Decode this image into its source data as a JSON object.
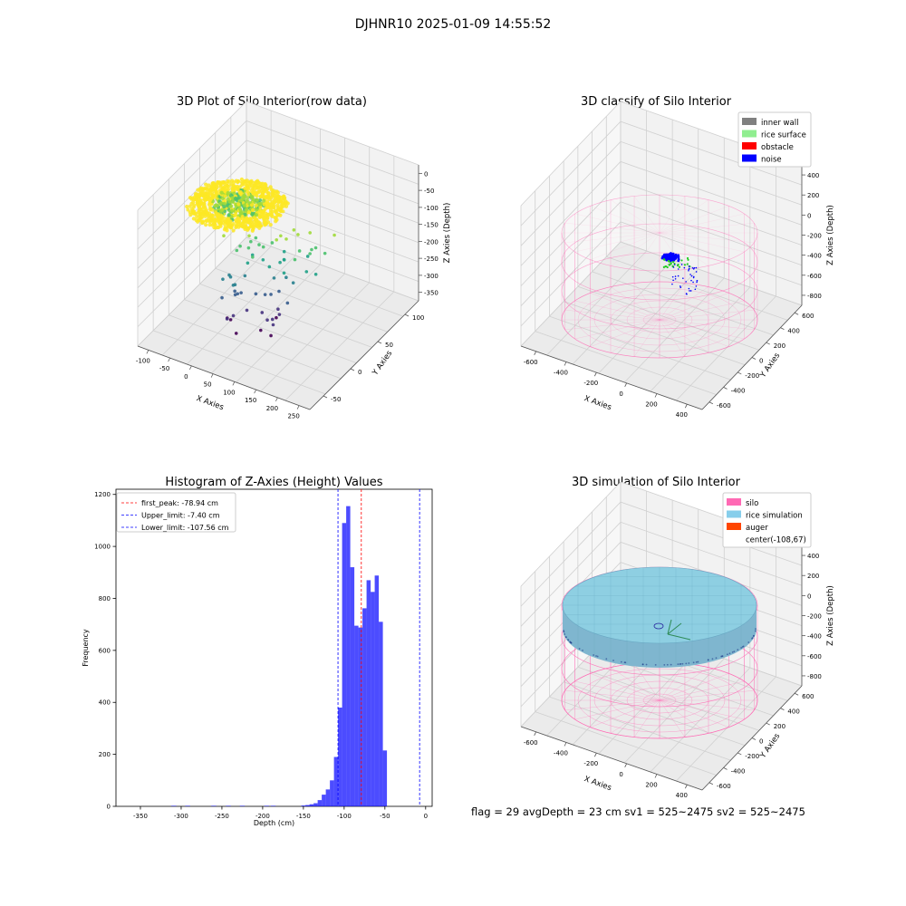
{
  "figure": {
    "suptitle": "DJHNR10 2025-01-09 14:55:52",
    "status_text": "flag = 29  avgDepth = 23 cm     sv1 = 525~2475  sv2 = 525~2475"
  },
  "chart_data": [
    {
      "type": "scatter",
      "title": "3D Plot of Silo Interior(row data)",
      "xlabel": "X Axies",
      "ylabel": "Y Axies",
      "zlabel": "Z Axies (Depth)",
      "x_ticks": [
        -100,
        -50,
        0,
        50,
        100,
        150,
        200,
        250
      ],
      "y_ticks": [
        -50,
        0,
        50,
        100
      ],
      "z_ticks": [
        0,
        -50,
        -100,
        -150,
        -200,
        -250,
        -300,
        -350
      ],
      "xlim": [
        -120,
        270
      ],
      "ylim": [
        -80,
        130
      ],
      "zlim": [
        -380,
        20
      ],
      "colormap": "viridis",
      "grid": true
    },
    {
      "type": "scatter",
      "title": "3D classify of Silo Interior",
      "xlabel": "X Axies",
      "ylabel": "Y Axies",
      "zlabel": "Z Axies (Depth)",
      "x_ticks": [
        -600,
        -400,
        -200,
        0,
        200,
        400
      ],
      "y_ticks": [
        -600,
        -400,
        -200,
        0,
        200,
        400,
        600
      ],
      "z_ticks": [
        400,
        200,
        0,
        -200,
        -400,
        -600,
        -800
      ],
      "legend": [
        {
          "label": "inner wall",
          "color": "#808080"
        },
        {
          "label": "rice surface",
          "color": "#90ee90"
        },
        {
          "label": "obstacle",
          "color": "#ff0000"
        },
        {
          "label": "noise",
          "color": "#0000ff"
        }
      ],
      "legend_position": "top-right",
      "wall_color": "#ff69b4",
      "grid": true
    },
    {
      "type": "bar",
      "title": "Histogram of Z-Axies (Height) Values",
      "xlabel": "Depth (cm)",
      "ylabel": "Frequency",
      "xlim": [
        -380,
        8
      ],
      "ylim": [
        0,
        1220
      ],
      "x_ticks": [
        -350,
        -300,
        -250,
        -200,
        -150,
        -100,
        -50,
        0
      ],
      "y_ticks": [
        0,
        200,
        400,
        600,
        800,
        1000,
        1200
      ],
      "bar_color": "#0000ff",
      "bin_start": -152.5,
      "bin_width": 5,
      "values": [
        3,
        5,
        8,
        12,
        24,
        45,
        65,
        100,
        190,
        380,
        1090,
        1155,
        920,
        695,
        688,
        762,
        870,
        825,
        888,
        710,
        215
      ],
      "sparse_bins": [
        {
          "x": -312,
          "value": 2
        },
        {
          "x": -295,
          "value": 2
        },
        {
          "x": -263,
          "value": 2
        },
        {
          "x": -245,
          "value": 2
        },
        {
          "x": -228,
          "value": 2
        },
        {
          "x": -198,
          "value": 2
        },
        {
          "x": -190,
          "value": 2
        }
      ],
      "vlines": [
        {
          "label": "first_peak: -78.94 cm",
          "x": -78.94,
          "color": "#ff0000"
        },
        {
          "label": "Upper_limit: -7.40 cm",
          "x": -7.4,
          "color": "#0000ff"
        },
        {
          "label": "Lower_limit: -107.56 cm",
          "x": -107.56,
          "color": "#0000ff"
        }
      ],
      "legend_position": "top-left"
    },
    {
      "type": "scatter",
      "title": "3D simulation of Silo Interior",
      "xlabel": "X Axies",
      "ylabel": "Y Axies",
      "zlabel": "Z Axies (Depth)",
      "x_ticks": [
        -600,
        -400,
        -200,
        0,
        200,
        400
      ],
      "y_ticks": [
        -600,
        -400,
        -200,
        0,
        200,
        400,
        600
      ],
      "z_ticks": [
        400,
        200,
        0,
        -200,
        -400,
        -600,
        -800
      ],
      "legend": [
        {
          "label": "silo",
          "color": "#ff69b4"
        },
        {
          "label": "rice simulation",
          "color": "#87ceeb"
        },
        {
          "label": "auger",
          "color": "#ff4500"
        },
        {
          "label": "center(-108,67)",
          "color": ""
        }
      ],
      "legend_position": "top-right",
      "grid": true
    }
  ]
}
